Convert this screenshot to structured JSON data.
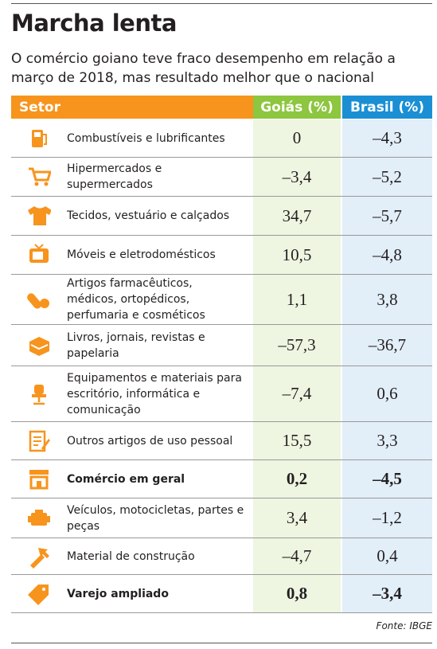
{
  "header": {
    "title": "Marcha lenta",
    "subtitle": "O comércio goiano teve fraco desempenho em relação a março de 2018, mas resultado melhor que o nacional"
  },
  "table": {
    "columns": [
      "Setor",
      "Goiás (%)",
      "Brasil (%)"
    ],
    "rows": [
      [
        "Combustíveis e lubrificantes",
        "0",
        "–4,3"
      ],
      [
        "Hipermercados e supermercados",
        "–3,4",
        "–5,2"
      ],
      [
        "Tecidos, vestuário e calçados",
        "34,7",
        "–5,7"
      ],
      [
        "Móveis e eletrodomésticos",
        "10,5",
        "–4,8"
      ],
      [
        "Artigos farmacêuticos, médicos, ortopédicos, perfumaria e cosméticos",
        "1,1",
        "3,8"
      ],
      [
        "Livros, jornais, revistas e papelaria",
        "–57,3",
        "–36,7"
      ],
      [
        "Equipamentos e materiais para escritório, informática e comunicação",
        "–7,4",
        "0,6"
      ],
      [
        "Outros artigos de uso pessoal",
        "15,5",
        "3,3"
      ],
      [
        "Comércio em geral",
        "0,2",
        "–4,5"
      ],
      [
        "Veículos, motocicletas, partes e peças",
        "3,4",
        "–1,2"
      ],
      [
        "Material de construção",
        "–4,7",
        "0,4"
      ],
      [
        "Varejo ampliado",
        "0,8",
        "–3,4"
      ]
    ]
  },
  "source": "Fonte: IBGE"
}
